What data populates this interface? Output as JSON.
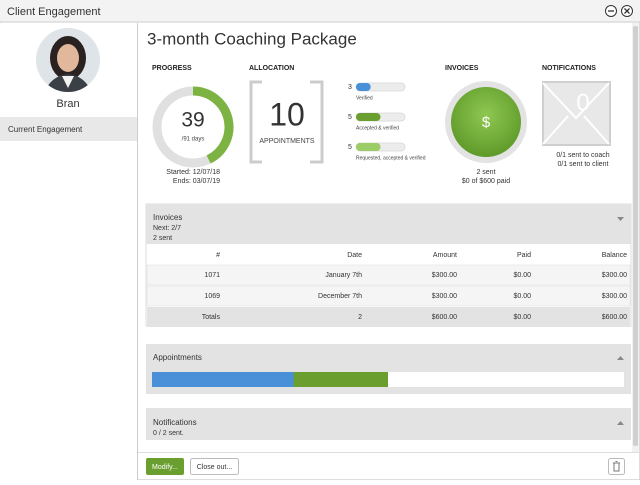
{
  "window": {
    "title": "Client Engagement"
  },
  "sidebar": {
    "name": "Bran",
    "menu": [
      "Current Engagement"
    ]
  },
  "heading": "3-month Coaching Package",
  "progress": {
    "label": "PROGRESS",
    "days": 39,
    "total": {
      "value": 91,
      "label": "/91 days"
    },
    "started": "Started: 12/07/18",
    "ends": "Ends: 03/07/19"
  },
  "allocation": {
    "label": "ALLOCATION",
    "total": 10,
    "unit": "APPOINTMENTS",
    "bars": [
      {
        "count": 3,
        "label": "Verified"
      },
      {
        "count": 5,
        "label": "Accepted & verified"
      },
      {
        "count": 5,
        "label": "Requested, accepted & verified"
      }
    ]
  },
  "invoices_summary": {
    "label": "INVOICES",
    "symbol": "$",
    "sent": "2 sent",
    "paid": "$0 of $600 paid"
  },
  "notifications_summary": {
    "label": "NOTIFICATIONS",
    "count": 0,
    "coach": "0/1 sent to coach",
    "client": "0/1 sent to client"
  },
  "invoices_panel": {
    "title": "Invoices",
    "next": "Next: 2/7",
    "sent": "2 sent",
    "table": {
      "columns": [
        "#",
        "Date",
        "Amount",
        "Paid",
        "Balance"
      ],
      "rows": [
        [
          "1071",
          "January 7th",
          "$300.00",
          "$0.00",
          "$300.00"
        ],
        [
          "1069",
          "December 7th",
          "$300.00",
          "$0.00",
          "$300.00"
        ]
      ],
      "totals": [
        "Totals",
        "2",
        "$600.00",
        "$0.00",
        "$600.00"
      ]
    }
  },
  "appointments_panel": {
    "title": "Appointments"
  },
  "notifications_panel": {
    "title": "Notifications",
    "sent": "0 / 2 sent."
  },
  "buttons": {
    "modify": "Modify...",
    "close": "Close out..."
  }
}
